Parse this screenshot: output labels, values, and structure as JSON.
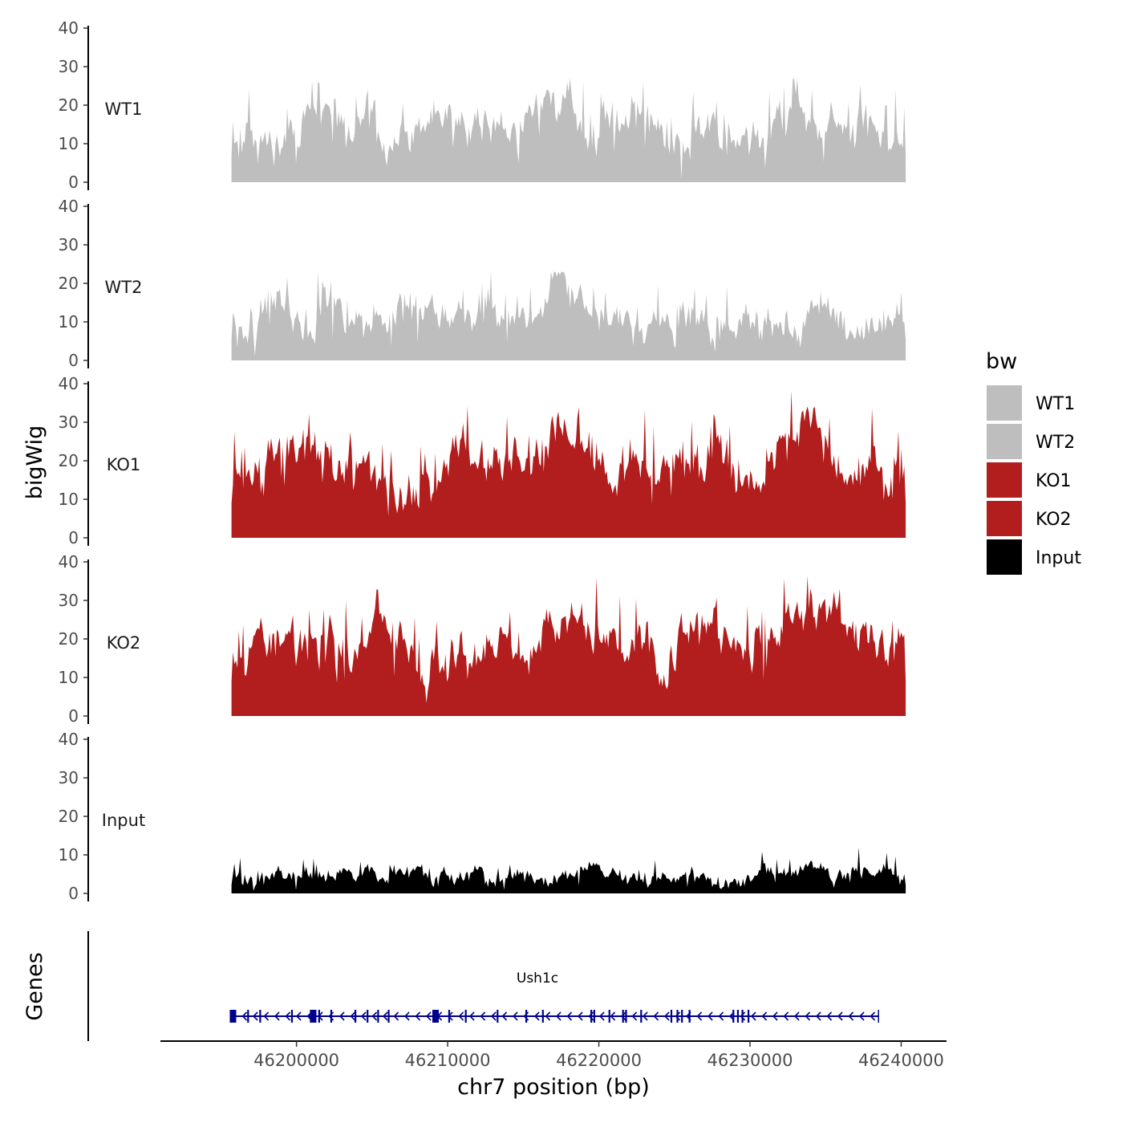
{
  "chart_data": {
    "type": "area",
    "title": "",
    "ylabel": "bigWig",
    "genes_label": "Genes",
    "xlabel": "chr7 position (bp)",
    "xlim": [
      46191000,
      46243000
    ],
    "ylim": [
      0,
      40
    ],
    "y_ticks": [
      0,
      10,
      20,
      30,
      40
    ],
    "x_ticks": [
      46200000,
      46210000,
      46220000,
      46230000,
      46240000
    ],
    "region": [
      46195700,
      46240300
    ],
    "legend": {
      "title": "bw",
      "position": "right",
      "entries": [
        {
          "label": "WT1",
          "color": "#bebebe"
        },
        {
          "label": "WT2",
          "color": "#bebebe"
        },
        {
          "label": "KO1",
          "color": "#b21e1e"
        },
        {
          "label": "KO2",
          "color": "#b21e1e"
        },
        {
          "label": "Input",
          "color": "#000000"
        }
      ]
    },
    "tracks": [
      {
        "name": "WT1",
        "color": "#bebebe",
        "base": 14,
        "amplitude": 7,
        "peak_max": 27,
        "seed": 11,
        "humps": [
          [
            46216800,
            1800,
            8
          ],
          [
            46233600,
            1200,
            4
          ]
        ]
      },
      {
        "name": "WT2",
        "color": "#bebebe",
        "base": 11,
        "amplitude": 6,
        "peak_max": 23,
        "seed": 23,
        "humps": [
          [
            46217000,
            1500,
            7
          ],
          [
            46202000,
            1500,
            2
          ]
        ]
      },
      {
        "name": "KO1",
        "color": "#b21e1e",
        "base": 18,
        "amplitude": 8,
        "peak_max": 39,
        "seed": 37,
        "humps": [
          [
            46217000,
            2000,
            9
          ],
          [
            46233500,
            2000,
            11
          ],
          [
            46201000,
            1200,
            4
          ],
          [
            46226000,
            1500,
            5
          ],
          [
            46205500,
            1500,
            -7
          ]
        ]
      },
      {
        "name": "KO2",
        "color": "#b21e1e",
        "base": 18,
        "amplitude": 8,
        "peak_max": 38,
        "seed": 53,
        "humps": [
          [
            46218000,
            2500,
            8
          ],
          [
            46234000,
            2000,
            10
          ],
          [
            46226500,
            1500,
            9
          ],
          [
            46215000,
            1000,
            -6
          ]
        ]
      },
      {
        "name": "Input",
        "color": "#000000",
        "base": 4.5,
        "amplitude": 3,
        "peak_max": 16,
        "seed": 71,
        "humps": []
      }
    ],
    "genes": [
      {
        "name": "Ush1c",
        "start": 46195700,
        "end": 46238500,
        "strand": "-",
        "color": "#00008b",
        "exons": [
          46195800,
          46196800,
          46197600,
          46199700,
          46201100,
          46201250,
          46201500,
          46202300,
          46203900,
          46204700,
          46205400,
          46206100,
          46209200,
          46210100,
          46211200,
          46213300,
          46215200,
          46216300,
          46219500,
          46219700,
          46220700,
          46221600,
          46221800,
          46222800,
          46224800,
          46225200,
          46225500,
          46226000,
          46228900,
          46229200,
          46229500,
          46229900
        ]
      }
    ]
  }
}
